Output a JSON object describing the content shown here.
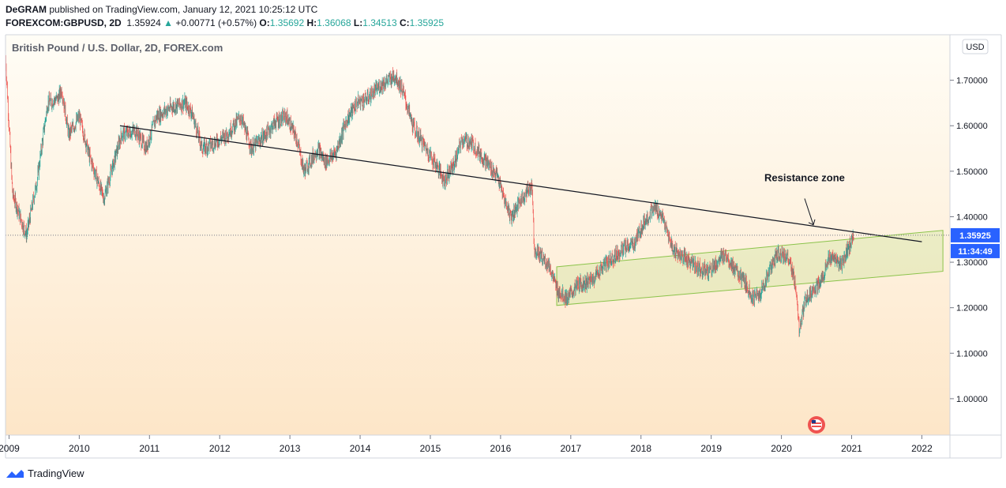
{
  "header": {
    "author": "DeGRAM",
    "published": " published on TradingView.com, January 12, 2021 10:25:12 UTC",
    "symbol": "FOREXCOM:GBPUSD, 2D",
    "last": "1.35924",
    "arrow": "▲",
    "change": "+0.00771 (+0.57%)",
    "o_label": "O:",
    "o": "1.35692",
    "h_label": "H:",
    "h": "1.36068",
    "l_label": "L:",
    "l": "1.34513",
    "c_label": "C:",
    "c": "1.35925"
  },
  "footer": {
    "brand": "TradingView"
  },
  "colors": {
    "up": "#26a69a",
    "down": "#ef5350",
    "channel": "#8bc34a",
    "price_tag": "#2962ff",
    "timer_tag": "#2962ff"
  },
  "chart_data": {
    "type": "candlestick",
    "title": "British Pound / U.S. Dollar, 2D, FOREX.com",
    "currency": "USD",
    "x_ticks": [
      "2009",
      "2010",
      "2011",
      "2012",
      "2013",
      "2014",
      "2015",
      "2016",
      "2017",
      "2018",
      "2019",
      "2020",
      "2021",
      "2022"
    ],
    "y_ticks": [
      "1.00000",
      "1.10000",
      "1.20000",
      "1.30000",
      "1.40000",
      "1.50000",
      "1.60000",
      "1.70000"
    ],
    "ylim": [
      0.92,
      1.8
    ],
    "xlim": [
      2008.95,
      2022.4
    ],
    "last_price": 1.35925,
    "last_price_label": "1.35925",
    "timer_label": "11:34:49",
    "annotation": "Resistance zone",
    "trendline": {
      "start": [
        2010.58,
        1.6
      ],
      "end": [
        2022.0,
        1.345
      ]
    },
    "channel": {
      "lower": [
        [
          2016.8,
          1.205
        ],
        [
          2022.3,
          1.28
        ]
      ],
      "upper": [
        [
          2016.8,
          1.29
        ],
        [
          2022.3,
          1.37
        ]
      ]
    },
    "price_path": [
      [
        2008.95,
        1.75
      ],
      [
        2009.05,
        1.45
      ],
      [
        2009.2,
        1.38
      ],
      [
        2009.25,
        1.36
      ],
      [
        2009.4,
        1.48
      ],
      [
        2009.55,
        1.65
      ],
      [
        2009.7,
        1.66
      ],
      [
        2009.75,
        1.68
      ],
      [
        2009.85,
        1.58
      ],
      [
        2010.0,
        1.62
      ],
      [
        2010.15,
        1.53
      ],
      [
        2010.35,
        1.44
      ],
      [
        2010.6,
        1.58
      ],
      [
        2010.8,
        1.59
      ],
      [
        2010.95,
        1.55
      ],
      [
        2011.1,
        1.62
      ],
      [
        2011.3,
        1.64
      ],
      [
        2011.5,
        1.65
      ],
      [
        2011.6,
        1.63
      ],
      [
        2011.75,
        1.55
      ],
      [
        2011.9,
        1.56
      ],
      [
        2012.1,
        1.58
      ],
      [
        2012.3,
        1.62
      ],
      [
        2012.45,
        1.55
      ],
      [
        2012.65,
        1.58
      ],
      [
        2012.8,
        1.61
      ],
      [
        2012.95,
        1.62
      ],
      [
        2013.1,
        1.57
      ],
      [
        2013.2,
        1.5
      ],
      [
        2013.4,
        1.55
      ],
      [
        2013.5,
        1.52
      ],
      [
        2013.65,
        1.54
      ],
      [
        2013.8,
        1.61
      ],
      [
        2013.95,
        1.65
      ],
      [
        2014.1,
        1.66
      ],
      [
        2014.3,
        1.69
      ],
      [
        2014.5,
        1.71
      ],
      [
        2014.6,
        1.68
      ],
      [
        2014.75,
        1.6
      ],
      [
        2014.9,
        1.56
      ],
      [
        2015.1,
        1.51
      ],
      [
        2015.2,
        1.48
      ],
      [
        2015.35,
        1.52
      ],
      [
        2015.45,
        1.57
      ],
      [
        2015.6,
        1.56
      ],
      [
        2015.8,
        1.52
      ],
      [
        2015.95,
        1.49
      ],
      [
        2016.05,
        1.44
      ],
      [
        2016.15,
        1.4
      ],
      [
        2016.3,
        1.44
      ],
      [
        2016.45,
        1.47
      ],
      [
        2016.48,
        1.33
      ],
      [
        2016.6,
        1.31
      ],
      [
        2016.7,
        1.29
      ],
      [
        2016.8,
        1.24
      ],
      [
        2016.95,
        1.22
      ],
      [
        2017.1,
        1.25
      ],
      [
        2017.3,
        1.26
      ],
      [
        2017.45,
        1.29
      ],
      [
        2017.6,
        1.31
      ],
      [
        2017.75,
        1.33
      ],
      [
        2017.9,
        1.34
      ],
      [
        2018.05,
        1.39
      ],
      [
        2018.2,
        1.42
      ],
      [
        2018.3,
        1.4
      ],
      [
        2018.45,
        1.33
      ],
      [
        2018.6,
        1.31
      ],
      [
        2018.8,
        1.29
      ],
      [
        2018.95,
        1.28
      ],
      [
        2019.1,
        1.3
      ],
      [
        2019.2,
        1.32
      ],
      [
        2019.35,
        1.28
      ],
      [
        2019.5,
        1.25
      ],
      [
        2019.6,
        1.22
      ],
      [
        2019.7,
        1.23
      ],
      [
        2019.85,
        1.29
      ],
      [
        2019.95,
        1.32
      ],
      [
        2020.1,
        1.31
      ],
      [
        2020.2,
        1.25
      ],
      [
        2020.25,
        1.15
      ],
      [
        2020.35,
        1.22
      ],
      [
        2020.45,
        1.24
      ],
      [
        2020.55,
        1.25
      ],
      [
        2020.65,
        1.3
      ],
      [
        2020.75,
        1.31
      ],
      [
        2020.85,
        1.29
      ],
      [
        2020.95,
        1.33
      ],
      [
        2021.03,
        1.36
      ]
    ]
  }
}
